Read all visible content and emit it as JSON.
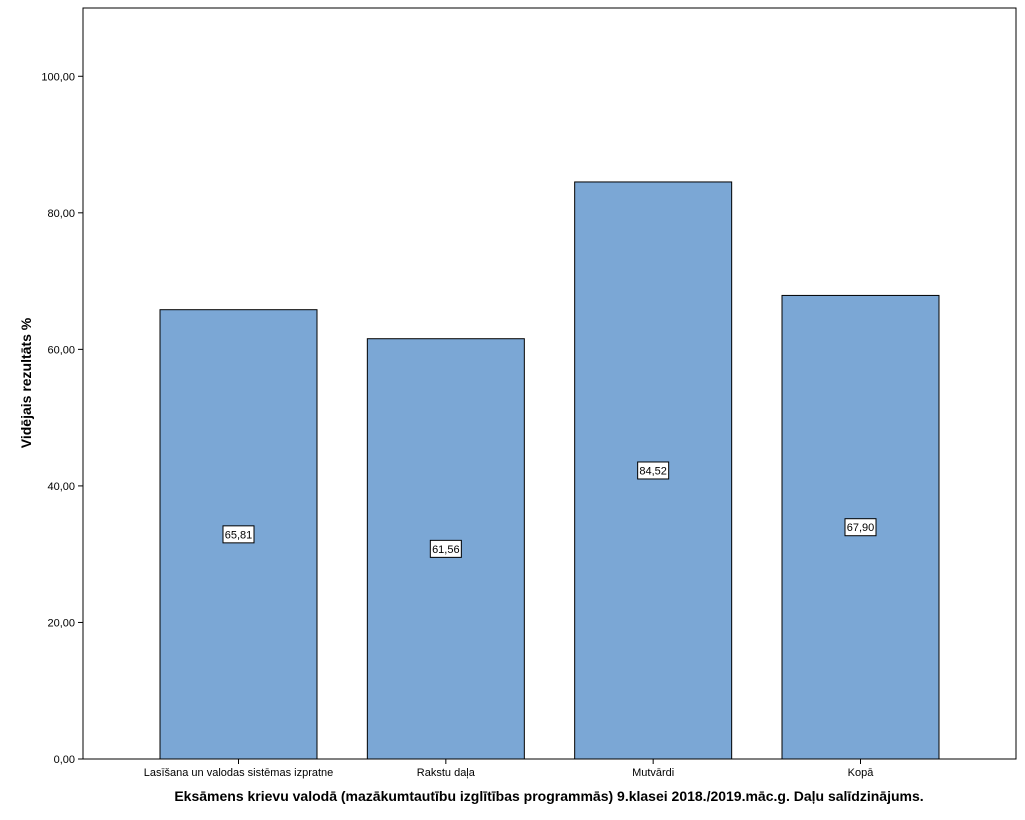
{
  "chart_data": {
    "type": "bar",
    "categories": [
      "Lasīšana un valodas sistēmas izpratne",
      "Rakstu daļa",
      "Mutvārdi",
      "Kopā"
    ],
    "values": [
      65.81,
      61.56,
      84.52,
      67.9
    ],
    "data_labels": [
      "65,81",
      "61,56",
      "84,52",
      "67,90"
    ],
    "xlabel": "Eksāmens krievu valodā (mazākumtautību izglītības programmās) 9.klasei 2018./2019.māc.g. Daļu salīdzinājums.",
    "ylabel": "Vidējais rezultāts %",
    "ylim": [
      0,
      110
    ],
    "yticks": [
      0,
      20,
      40,
      60,
      80,
      100
    ],
    "ytick_labels": [
      "0,00",
      "20,00",
      "40,00",
      "60,00",
      "80,00",
      "100,00"
    ],
    "grid": false,
    "legend": "none",
    "bar_color": "#7BA7D5",
    "bar_edge_color": "#000000"
  }
}
